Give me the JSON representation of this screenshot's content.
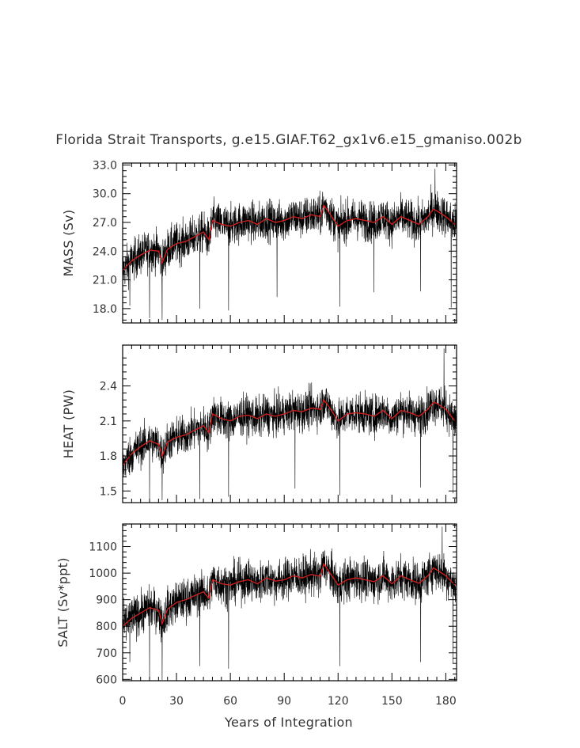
{
  "chart_data": {
    "type": "line",
    "title": "Florida Strait Transports, g.e15.GIAF.T62_gx1v6.e15_gmaniso.002b",
    "xlabel": "Years of Integration",
    "xlim": [
      0,
      186
    ],
    "xticks": [
      0,
      30,
      60,
      90,
      120,
      150,
      180
    ],
    "colors": {
      "monthly": "#000000",
      "annual": "#cc1f1f"
    },
    "panels": [
      {
        "name": "mass",
        "ylabel": "MASS (Sv)",
        "ylim": [
          16.5,
          33.2
        ],
        "yticks": [
          18.0,
          21.0,
          24.0,
          27.0,
          30.0,
          33.0
        ],
        "ytick_labels": [
          "18.0",
          "21.0",
          "24.0",
          "27.0",
          "30.0",
          "33.0"
        ],
        "annual_x": [
          0,
          5,
          10,
          15,
          20,
          22,
          25,
          30,
          35,
          40,
          45,
          48,
          50,
          55,
          60,
          65,
          70,
          75,
          80,
          85,
          90,
          95,
          100,
          105,
          110,
          112,
          115,
          120,
          125,
          130,
          135,
          140,
          145,
          150,
          155,
          160,
          165,
          170,
          173,
          175,
          180,
          185
        ],
        "annual_y": [
          22.0,
          23.0,
          23.6,
          24.1,
          24.0,
          22.8,
          24.2,
          24.8,
          25.0,
          25.5,
          26.0,
          25.2,
          27.2,
          26.8,
          26.6,
          27.0,
          27.2,
          26.8,
          27.4,
          27.0,
          27.2,
          27.6,
          27.4,
          27.8,
          27.6,
          28.8,
          28.0,
          26.6,
          27.2,
          27.4,
          27.2,
          27.0,
          27.6,
          26.8,
          27.6,
          27.2,
          26.8,
          27.6,
          28.4,
          28.2,
          27.6,
          26.8
        ],
        "noise_sd": 1.5,
        "spikes": [
          [
            4,
            18.3
          ],
          [
            15,
            17.0
          ],
          [
            22,
            16.8
          ],
          [
            43,
            18.0
          ],
          [
            59,
            17.8
          ],
          [
            86,
            19.2
          ],
          [
            121,
            18.2
          ],
          [
            140,
            19.7
          ],
          [
            166,
            19.8
          ],
          [
            174,
            32.6
          ],
          [
            183,
            18.1
          ]
        ]
      },
      {
        "name": "heat",
        "ylabel": "HEAT (PW)",
        "ylim": [
          1.4,
          2.75
        ],
        "yticks": [
          1.5,
          1.8,
          2.1,
          2.4
        ],
        "ytick_labels": [
          "1.5",
          "1.8",
          "2.1",
          "2.4"
        ],
        "annual_x": [
          0,
          5,
          10,
          15,
          20,
          22,
          25,
          30,
          35,
          40,
          45,
          48,
          50,
          55,
          60,
          65,
          70,
          75,
          80,
          85,
          90,
          95,
          100,
          105,
          110,
          112,
          115,
          120,
          125,
          130,
          135,
          140,
          145,
          150,
          155,
          160,
          165,
          170,
          173,
          175,
          180,
          185
        ],
        "annual_y": [
          1.72,
          1.82,
          1.88,
          1.93,
          1.9,
          1.8,
          1.92,
          1.96,
          1.98,
          2.02,
          2.06,
          2.0,
          2.16,
          2.12,
          2.1,
          2.14,
          2.15,
          2.12,
          2.16,
          2.14,
          2.16,
          2.19,
          2.18,
          2.21,
          2.2,
          2.28,
          2.22,
          2.1,
          2.16,
          2.17,
          2.16,
          2.14,
          2.19,
          2.12,
          2.19,
          2.17,
          2.14,
          2.2,
          2.26,
          2.25,
          2.2,
          2.1
        ],
        "noise_sd": 0.12,
        "spikes": [
          [
            15,
            1.42
          ],
          [
            22,
            1.42
          ],
          [
            43,
            1.43
          ],
          [
            59,
            1.45
          ],
          [
            96,
            1.52
          ],
          [
            121,
            1.46
          ],
          [
            166,
            1.53
          ],
          [
            179,
            2.72
          ],
          [
            184,
            1.48
          ]
        ]
      },
      {
        "name": "salt",
        "ylabel": "SALT (Sv*ppt)",
        "ylim": [
          595,
          1185
        ],
        "yticks": [
          600,
          700,
          800,
          900,
          1000,
          1100
        ],
        "ytick_labels": [
          "600",
          "700",
          "800",
          "900",
          "1000",
          "1100"
        ],
        "annual_x": [
          0,
          5,
          10,
          15,
          20,
          22,
          25,
          30,
          35,
          40,
          45,
          48,
          50,
          55,
          60,
          65,
          70,
          75,
          80,
          85,
          90,
          95,
          100,
          105,
          110,
          112,
          115,
          120,
          125,
          130,
          135,
          140,
          145,
          150,
          155,
          160,
          165,
          170,
          173,
          175,
          180,
          185
        ],
        "annual_y": [
          800,
          830,
          850,
          870,
          860,
          810,
          865,
          890,
          900,
          915,
          930,
          905,
          975,
          960,
          955,
          968,
          975,
          960,
          982,
          970,
          975,
          990,
          982,
          995,
          988,
          1035,
          1005,
          955,
          975,
          982,
          975,
          968,
          990,
          960,
          990,
          975,
          962,
          990,
          1020,
          1012,
          990,
          955
        ],
        "noise_sd": 55,
        "spikes": [
          [
            4,
            665
          ],
          [
            15,
            600
          ],
          [
            22,
            598
          ],
          [
            43,
            650
          ],
          [
            59,
            640
          ],
          [
            121,
            650
          ],
          [
            166,
            665
          ],
          [
            178,
            1175
          ],
          [
            184,
            660
          ]
        ]
      }
    ]
  }
}
